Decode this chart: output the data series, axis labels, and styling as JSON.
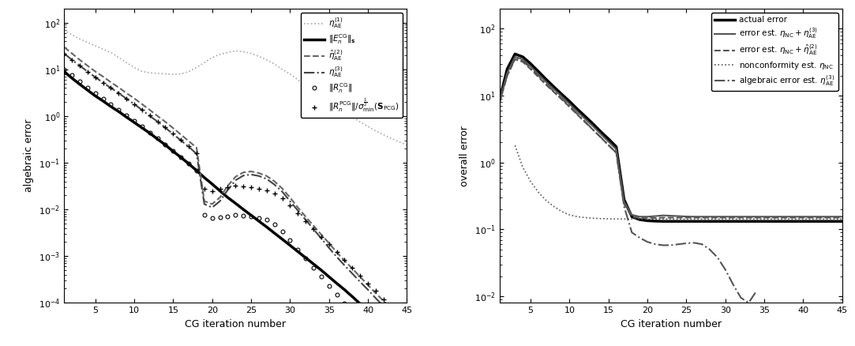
{
  "xlabel": "CG iteration number",
  "left_ylabel": "algebraic error",
  "right_ylabel": "overall error",
  "left_xlim": [
    1,
    45
  ],
  "left_ylim": [
    0.0001,
    200
  ],
  "right_xlim": [
    1,
    45
  ],
  "right_ylim": [
    0.008,
    200
  ],
  "xticks": [
    5,
    10,
    15,
    20,
    25,
    30,
    35,
    40,
    45
  ]
}
